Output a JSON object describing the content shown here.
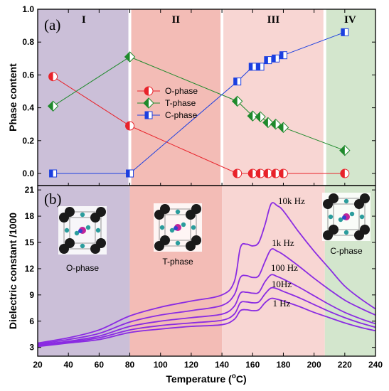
{
  "chart_data": [
    {
      "panel_label": "(a)",
      "type": "line",
      "ylabel": "Phase content",
      "ylim": [
        0,
        1.0
      ],
      "yticks": [
        "0.0",
        "0.2",
        "0.4",
        "0.6",
        "0.8",
        "1.0"
      ],
      "xlim": [
        20,
        240
      ],
      "grid": false,
      "legend": "center",
      "regions": [
        {
          "label": "I",
          "from": 20,
          "to": 80,
          "color": "#cbbfd8"
        },
        {
          "label": "II",
          "from": 80,
          "to": 140,
          "color": "#f3bcb6"
        },
        {
          "label": "III",
          "from": 140,
          "to": 207,
          "color": "#f8d6d3"
        },
        {
          "label": "IV",
          "from": 207,
          "to": 240,
          "color": "#d3e6cd"
        }
      ],
      "series": [
        {
          "name": "O-phase",
          "color": "#e8222a",
          "marker": "circle",
          "x": [
            30,
            80,
            150,
            160,
            165,
            170,
            175,
            180,
            220
          ],
          "y": [
            0.59,
            0.29,
            0.0,
            0.0,
            0.0,
            0.0,
            0.0,
            0.0,
            0.0
          ]
        },
        {
          "name": "T-phase",
          "color": "#1f8a2c",
          "marker": "diamond",
          "x": [
            30,
            80,
            150,
            160,
            165,
            170,
            175,
            180,
            220
          ],
          "y": [
            0.41,
            0.71,
            0.44,
            0.35,
            0.345,
            0.31,
            0.3,
            0.28,
            0.14
          ]
        },
        {
          "name": "C-phase",
          "color": "#1b3fe0",
          "marker": "square",
          "x": [
            30,
            80,
            150,
            160,
            165,
            170,
            175,
            180,
            220
          ],
          "y": [
            0.0,
            0.0,
            0.56,
            0.65,
            0.65,
            0.69,
            0.7,
            0.72,
            0.86
          ]
        }
      ]
    },
    {
      "panel_label": "(b)",
      "type": "line",
      "ylabel": "Dielectric constant /1000",
      "xlabel": "Temperature (°C)",
      "xlabel_main": "Temperature (",
      "xlabel_sup": "o",
      "xlabel_tail": "C)",
      "ylim": [
        2,
        21.5
      ],
      "yticks": [
        "3",
        "6",
        "9",
        "12",
        "15",
        "18",
        "21"
      ],
      "xlim": [
        20,
        240
      ],
      "xticks": [
        "20",
        "40",
        "60",
        "80",
        "100",
        "120",
        "140",
        "160",
        "180",
        "200",
        "220",
        "240"
      ],
      "grid": false,
      "line_color": "#8a2be2",
      "phase_labels": [
        {
          "text": "O-phase"
        },
        {
          "text": "T-phase"
        },
        {
          "text": "C-phase"
        }
      ],
      "series": [
        {
          "name": "10k Hz",
          "x": [
            20,
            40,
            60,
            80,
            100,
            120,
            140,
            148,
            152,
            156,
            160,
            164,
            168,
            172,
            176,
            180,
            190,
            200,
            210,
            220,
            230,
            240
          ],
          "y": [
            3.5,
            4.1,
            5.0,
            6.6,
            7.6,
            8.3,
            9.0,
            10.5,
            14.4,
            14.8,
            14.6,
            15.0,
            17.0,
            19.4,
            19.2,
            18.6,
            16.2,
            14.0,
            12.0,
            10.0,
            8.6,
            7.4
          ]
        },
        {
          "name": "1k Hz",
          "x": [
            20,
            40,
            60,
            80,
            100,
            120,
            140,
            148,
            152,
            156,
            160,
            164,
            168,
            172,
            176,
            180,
            190,
            200,
            210,
            220,
            230,
            240
          ],
          "y": [
            3.4,
            3.9,
            4.6,
            5.9,
            6.7,
            7.2,
            7.8,
            9.0,
            11.0,
            11.2,
            11.0,
            11.2,
            12.8,
            14.2,
            14.0,
            13.6,
            12.3,
            10.9,
            9.6,
            8.4,
            7.5,
            6.7
          ]
        },
        {
          "name": "100 Hz",
          "x": [
            20,
            40,
            60,
            80,
            100,
            120,
            140,
            148,
            152,
            156,
            160,
            164,
            168,
            172,
            176,
            180,
            190,
            200,
            210,
            220,
            230,
            240
          ],
          "y": [
            3.3,
            3.7,
            4.3,
            5.4,
            6.0,
            6.4,
            6.8,
            7.7,
            9.2,
            9.3,
            9.2,
            9.3,
            10.5,
            11.3,
            11.1,
            10.8,
            9.9,
            8.9,
            7.9,
            7.0,
            6.3,
            5.7
          ]
        },
        {
          "name": "10Hz",
          "x": [
            20,
            40,
            60,
            80,
            100,
            120,
            140,
            148,
            152,
            156,
            160,
            164,
            168,
            172,
            176,
            180,
            190,
            200,
            210,
            220,
            230,
            240
          ],
          "y": [
            3.2,
            3.6,
            4.1,
            5.0,
            5.5,
            5.8,
            6.1,
            6.8,
            8.1,
            8.2,
            8.1,
            8.2,
            9.1,
            9.8,
            9.7,
            9.4,
            8.7,
            7.9,
            7.1,
            6.4,
            5.8,
            5.3
          ]
        },
        {
          "name": "1 Hz",
          "x": [
            20,
            40,
            60,
            80,
            100,
            120,
            140,
            148,
            152,
            156,
            160,
            164,
            168,
            172,
            176,
            180,
            190,
            200,
            210,
            220,
            230,
            240
          ],
          "y": [
            3.1,
            3.5,
            3.9,
            4.7,
            5.1,
            5.4,
            5.6,
            6.2,
            7.2,
            7.3,
            7.2,
            7.3,
            8.1,
            8.6,
            8.5,
            8.3,
            7.7,
            7.0,
            6.4,
            5.8,
            5.3,
            4.9
          ]
        }
      ]
    }
  ]
}
